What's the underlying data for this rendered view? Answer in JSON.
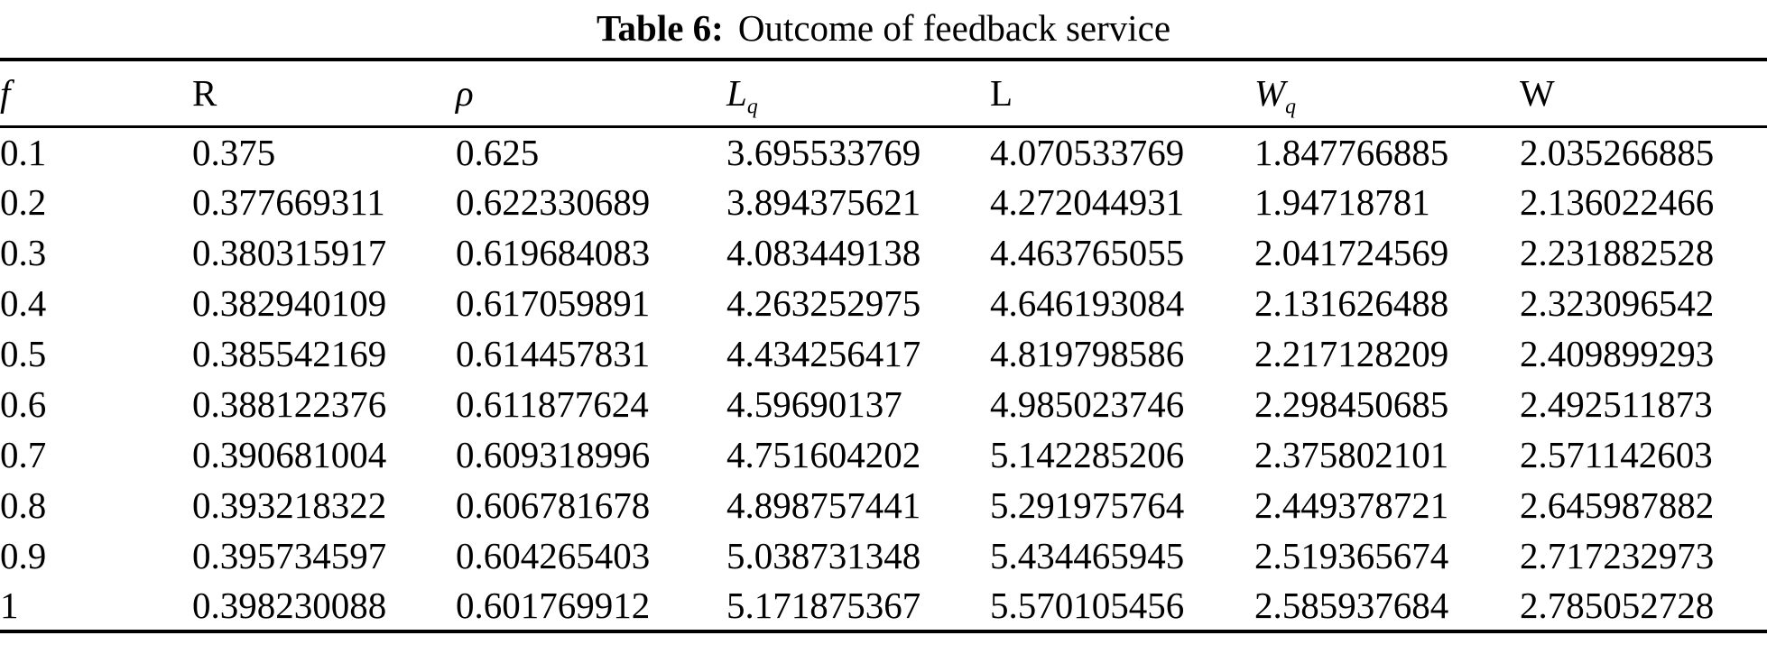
{
  "caption": {
    "label": "Table 6:",
    "text": "Outcome of feedback service"
  },
  "table": {
    "headers": [
      {
        "name": "f",
        "text": "f",
        "sub": "",
        "italic": true
      },
      {
        "name": "R",
        "text": "R",
        "sub": "",
        "italic": false
      },
      {
        "name": "rho",
        "text": "ρ",
        "sub": "",
        "italic": true
      },
      {
        "name": "Lq",
        "text": "L",
        "sub": "q",
        "italic": true
      },
      {
        "name": "L",
        "text": "L",
        "sub": "",
        "italic": false
      },
      {
        "name": "Wq",
        "text": "W",
        "sub": "q",
        "italic": true
      },
      {
        "name": "W",
        "text": "W",
        "sub": "",
        "italic": false
      }
    ],
    "rows": [
      [
        "0.1",
        "0.375",
        "0.625",
        "3.695533769",
        "4.070533769",
        "1.847766885",
        "2.035266885"
      ],
      [
        "0.2",
        "0.377669311",
        "0.622330689",
        "3.894375621",
        "4.272044931",
        "1.94718781",
        "2.136022466"
      ],
      [
        "0.3",
        "0.380315917",
        "0.619684083",
        "4.083449138",
        "4.463765055",
        "2.041724569",
        "2.231882528"
      ],
      [
        "0.4",
        "0.382940109",
        "0.617059891",
        "4.263252975",
        "4.646193084",
        "2.131626488",
        "2.323096542"
      ],
      [
        "0.5",
        "0.385542169",
        "0.614457831",
        "4.434256417",
        "4.819798586",
        "2.217128209",
        "2.409899293"
      ],
      [
        "0.6",
        "0.388122376",
        "0.611877624",
        "4.59690137",
        "4.985023746",
        "2.298450685",
        "2.492511873"
      ],
      [
        "0.7",
        "0.390681004",
        "0.609318996",
        "4.751604202",
        "5.142285206",
        "2.375802101",
        "2.571142603"
      ],
      [
        "0.8",
        "0.393218322",
        "0.606781678",
        "4.898757441",
        "5.291975764",
        "2.449378721",
        "2.645987882"
      ],
      [
        "0.9",
        "0.395734597",
        "0.604265403",
        "5.038731348",
        "5.434465945",
        "2.519365674",
        "2.717232973"
      ],
      [
        "1",
        "0.398230088",
        "0.601769912",
        "5.171875367",
        "5.570105456",
        "2.585937684",
        "2.785052728"
      ]
    ]
  },
  "colors": {
    "text": "#000000",
    "background": "#ffffff",
    "rule": "#000000"
  }
}
